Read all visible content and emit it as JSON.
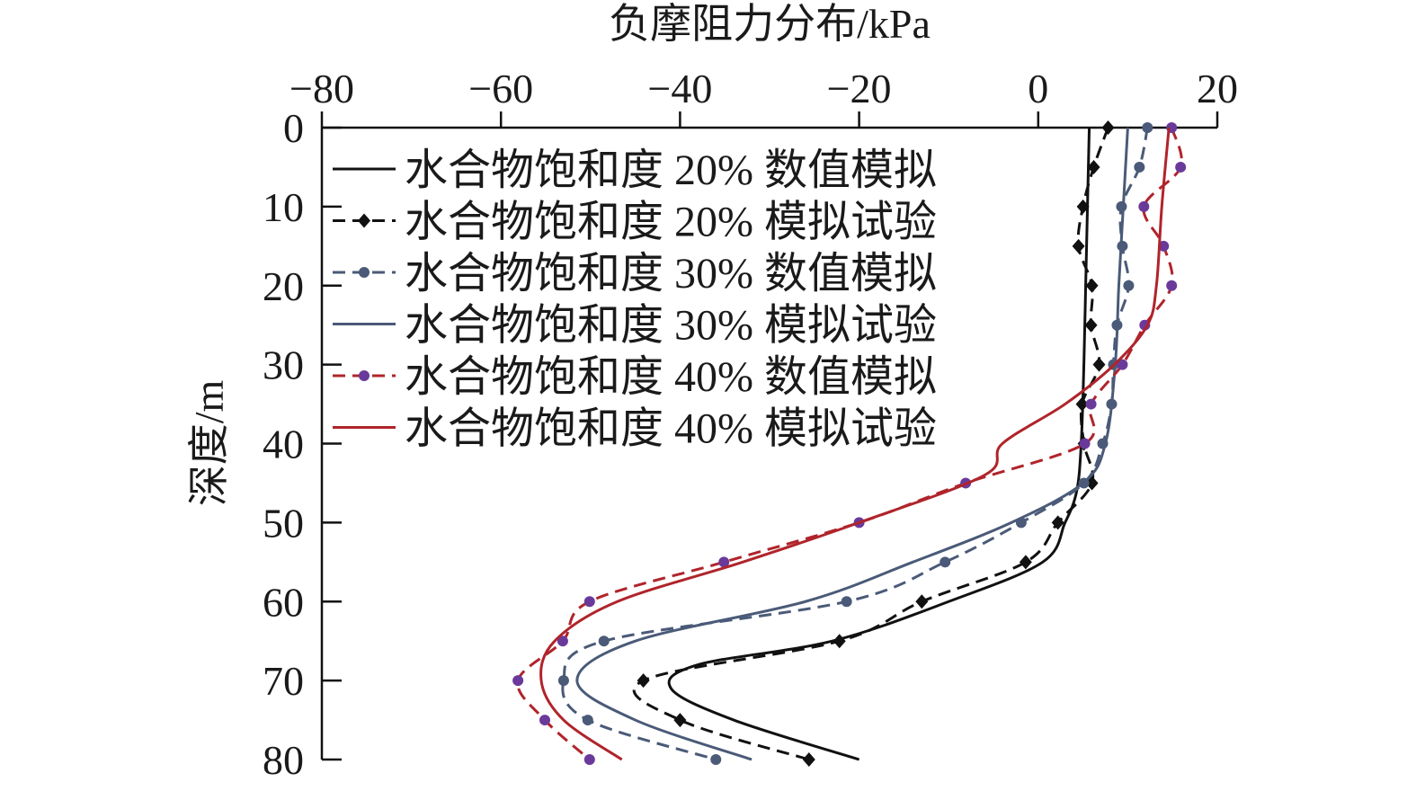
{
  "chart_data": {
    "type": "line",
    "title": "负摩阻力分布/kPa",
    "xlabel": "负摩阻力分布/kPa",
    "ylabel": "深度/m",
    "xlim": [
      -80,
      20
    ],
    "ylim": [
      0,
      80
    ],
    "y_inverted": true,
    "x_axis_position": "top",
    "xticks": [
      "−80",
      "−60",
      "−40",
      "−20",
      "0",
      "20"
    ],
    "xtick_values": [
      -80,
      -60,
      -40,
      -20,
      0,
      20
    ],
    "yticks": [
      "0",
      "10",
      "20",
      "30",
      "40",
      "50",
      "60",
      "70",
      "80"
    ],
    "ytick_values": [
      0,
      10,
      20,
      30,
      40,
      50,
      60,
      70,
      80
    ],
    "grid": false,
    "legend_position": "top-left",
    "series": [
      {
        "name": "水合物饱和度 20% 数值模拟",
        "style": "solid",
        "marker": "none",
        "color": "#111111",
        "x": [
          5.7,
          5.5,
          5.3,
          5.1,
          4.8,
          4.3,
          3.0,
          0.5,
          -10,
          -23,
          -38,
          -41,
          -34,
          -20
        ],
        "y": [
          0,
          10,
          20,
          30,
          40,
          46,
          50,
          55,
          60,
          65,
          68,
          71,
          75,
          80
        ]
      },
      {
        "name": "水合物饱和度 20% 模拟试验",
        "style": "dashed",
        "marker": "diamond",
        "color": "#111111",
        "x": [
          7.8,
          6.2,
          5.0,
          4.5,
          6.0,
          5.9,
          6.8,
          4.9,
          5.1,
          6.0,
          2.2,
          -1.4,
          -13.0,
          -22.2,
          -44.1,
          -40.0,
          -25.6
        ],
        "y": [
          0,
          5,
          10,
          15,
          20,
          25,
          30,
          35,
          40,
          45,
          50,
          55,
          60,
          65,
          70,
          75,
          80
        ]
      },
      {
        "name": "水合物饱和度 30% 数值模拟",
        "style": "dashed",
        "marker": "circle",
        "color": "#4a5a78",
        "x": [
          12.2,
          11.3,
          9.3,
          9.4,
          10.1,
          8.8,
          8.4,
          8.2,
          7.2,
          5.1,
          -1.9,
          -10.4,
          -21.4,
          -48.5,
          -53.0,
          -50.3,
          -36.0
        ],
        "y": [
          0,
          5,
          10,
          15,
          20,
          25,
          30,
          35,
          40,
          45,
          50,
          55,
          60,
          65,
          70,
          75,
          80
        ]
      },
      {
        "name": "水合物饱和度 30% 模拟试验",
        "style": "solid",
        "marker": "none",
        "color": "#4a5a78",
        "x": [
          10.0,
          9.5,
          9.0,
          8.6,
          7.5,
          5.0,
          -3,
          -14,
          -26,
          -45,
          -51.5,
          -45,
          -32
        ],
        "y": [
          0,
          10,
          20,
          30,
          40,
          45,
          50,
          55,
          60,
          65,
          70,
          75,
          80
        ]
      },
      {
        "name": "水合物饱和度 40% 数值模拟",
        "style": "dashed",
        "marker": "circle",
        "color": "#b0242b",
        "marker_color": "#6a3a9a",
        "x": [
          14.9,
          15.9,
          11.8,
          14.0,
          14.9,
          11.9,
          9.4,
          5.9,
          5.2,
          -8.1,
          -20.0,
          -35.1,
          -50.1,
          -53.1,
          -58.1,
          -55.1,
          -50.1
        ],
        "y": [
          0,
          5,
          10,
          15,
          20,
          25,
          30,
          35,
          40,
          45,
          50,
          55,
          60,
          65,
          70,
          75,
          80
        ]
      },
      {
        "name": "水合物饱和度 40% 模拟试验",
        "style": "solid",
        "marker": "none",
        "color": "#b0242b",
        "x": [
          14.6,
          13.8,
          13.2,
          12.2,
          8.5,
          3.0,
          -4,
          -6,
          -20,
          -33,
          -47,
          -54,
          -55.5,
          -53,
          -46.5
        ],
        "y": [
          0,
          10,
          20,
          25,
          30,
          35,
          40,
          44,
          50,
          55,
          60,
          65,
          70,
          75,
          80
        ]
      }
    ]
  }
}
